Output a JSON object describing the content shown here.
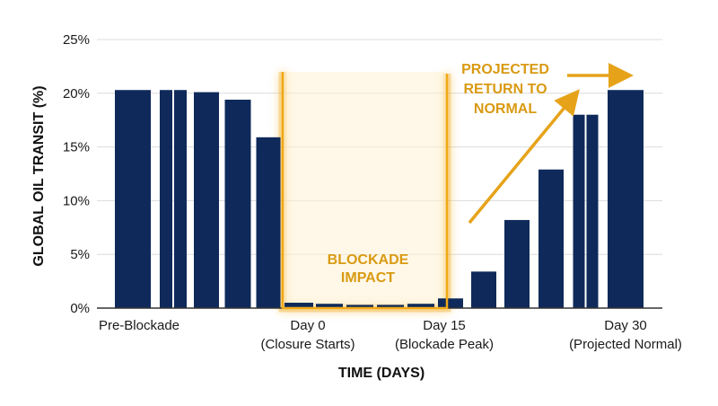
{
  "chart_data": {
    "type": "bar",
    "title": "",
    "xlabel": "TIME (DAYS)",
    "ylabel": "GLOBAL OIL TRANSIT (%)",
    "ylim": [
      0,
      25
    ],
    "yticks": [
      "0%",
      "5%",
      "10%",
      "15%",
      "20%",
      "25%"
    ],
    "grid": true,
    "series": [
      {
        "values": [
          20.3,
          20.3,
          20.3,
          20.1,
          19.4,
          15.9,
          0.5,
          0.4,
          0.3,
          0.3,
          0.4,
          0.9,
          3.4,
          8.2,
          12.9,
          18.0,
          18.0,
          20.3
        ]
      }
    ],
    "category_labels": [
      {
        "line1": "Pre-Blockade",
        "line2": ""
      },
      {
        "line1": "Day 0",
        "line2": "(Closure Starts)"
      },
      {
        "line1": "Day 15",
        "line2": "(Blockade Peak)"
      },
      {
        "line1": "Day 30",
        "line2": "(Projected Normal)"
      }
    ],
    "annotations": {
      "impact_line1": "BLOCKADE",
      "impact_line2": "IMPACT",
      "return_line1": "PROJECTED",
      "return_line2": "RETURN TO",
      "return_line3": "NORMAL"
    },
    "colors": {
      "bar": "#0f2a5a",
      "highlight": "#f0a818",
      "annotation_text": "#d99a12",
      "grid": "#dcdcdc",
      "baseline": "#333333"
    }
  }
}
